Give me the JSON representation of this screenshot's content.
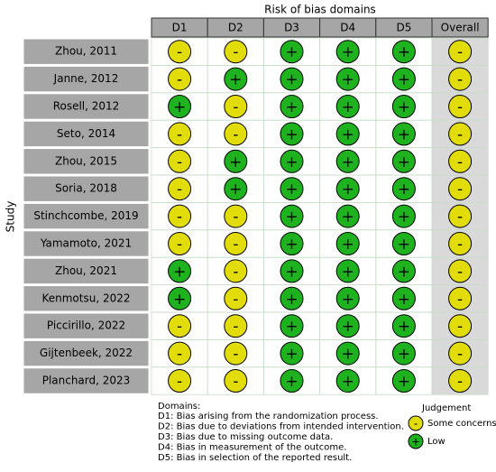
{
  "title": "Risk of bias domains",
  "y_label": "Study",
  "columns": [
    "D1",
    "D2",
    "D3",
    "D4",
    "D5",
    "Overall"
  ],
  "rows": [
    {
      "study": "Zhou, 2011",
      "judgements": [
        "-",
        "-",
        "+",
        "+",
        "+",
        "-"
      ]
    },
    {
      "study": "Janne, 2012",
      "judgements": [
        "-",
        "+",
        "+",
        "+",
        "+",
        "-"
      ]
    },
    {
      "study": "Rosell, 2012",
      "judgements": [
        "+",
        "-",
        "+",
        "+",
        "+",
        "-"
      ]
    },
    {
      "study": "Seto, 2014",
      "judgements": [
        "-",
        "-",
        "+",
        "+",
        "+",
        "-"
      ]
    },
    {
      "study": "Zhou, 2015",
      "judgements": [
        "-",
        "+",
        "+",
        "+",
        "+",
        "-"
      ]
    },
    {
      "study": "Soria, 2018",
      "judgements": [
        "-",
        "+",
        "+",
        "+",
        "+",
        "-"
      ]
    },
    {
      "study": "Stinchcombe, 2019",
      "judgements": [
        "-",
        "-",
        "+",
        "+",
        "+",
        "-"
      ]
    },
    {
      "study": "Yamamoto, 2021",
      "judgements": [
        "-",
        "-",
        "+",
        "+",
        "+",
        "-"
      ]
    },
    {
      "study": "Zhou, 2021",
      "judgements": [
        "+",
        "-",
        "+",
        "+",
        "+",
        "-"
      ]
    },
    {
      "study": "Kenmotsu, 2022",
      "judgements": [
        "+",
        "-",
        "+",
        "+",
        "+",
        "-"
      ]
    },
    {
      "study": "Piccirillo, 2022",
      "judgements": [
        "-",
        "-",
        "+",
        "+",
        "+",
        "-"
      ]
    },
    {
      "study": "Gijtenbeek, 2022",
      "judgements": [
        "-",
        "-",
        "+",
        "+",
        "+",
        "-"
      ]
    },
    {
      "study": "Planchard, 2023",
      "judgements": [
        "-",
        "-",
        "+",
        "+",
        "+",
        "-"
      ]
    }
  ],
  "domains": {
    "title": "Domains:",
    "lines": [
      "D1: Bias arising from the randomization process.",
      "D2: Bias due to deviations from intended intervention.",
      "D3: Bias due to missing outcome data.",
      "D4: Bias in measurement of the outcome.",
      "D5: Bias in selection of the reported result."
    ]
  },
  "legend": {
    "title": "Judgement",
    "items": [
      {
        "symbol": "-",
        "label": "Some concerns",
        "color": "#e3dc0b"
      },
      {
        "symbol": "+",
        "label": "Low",
        "color": "#1fb21f"
      }
    ]
  }
}
